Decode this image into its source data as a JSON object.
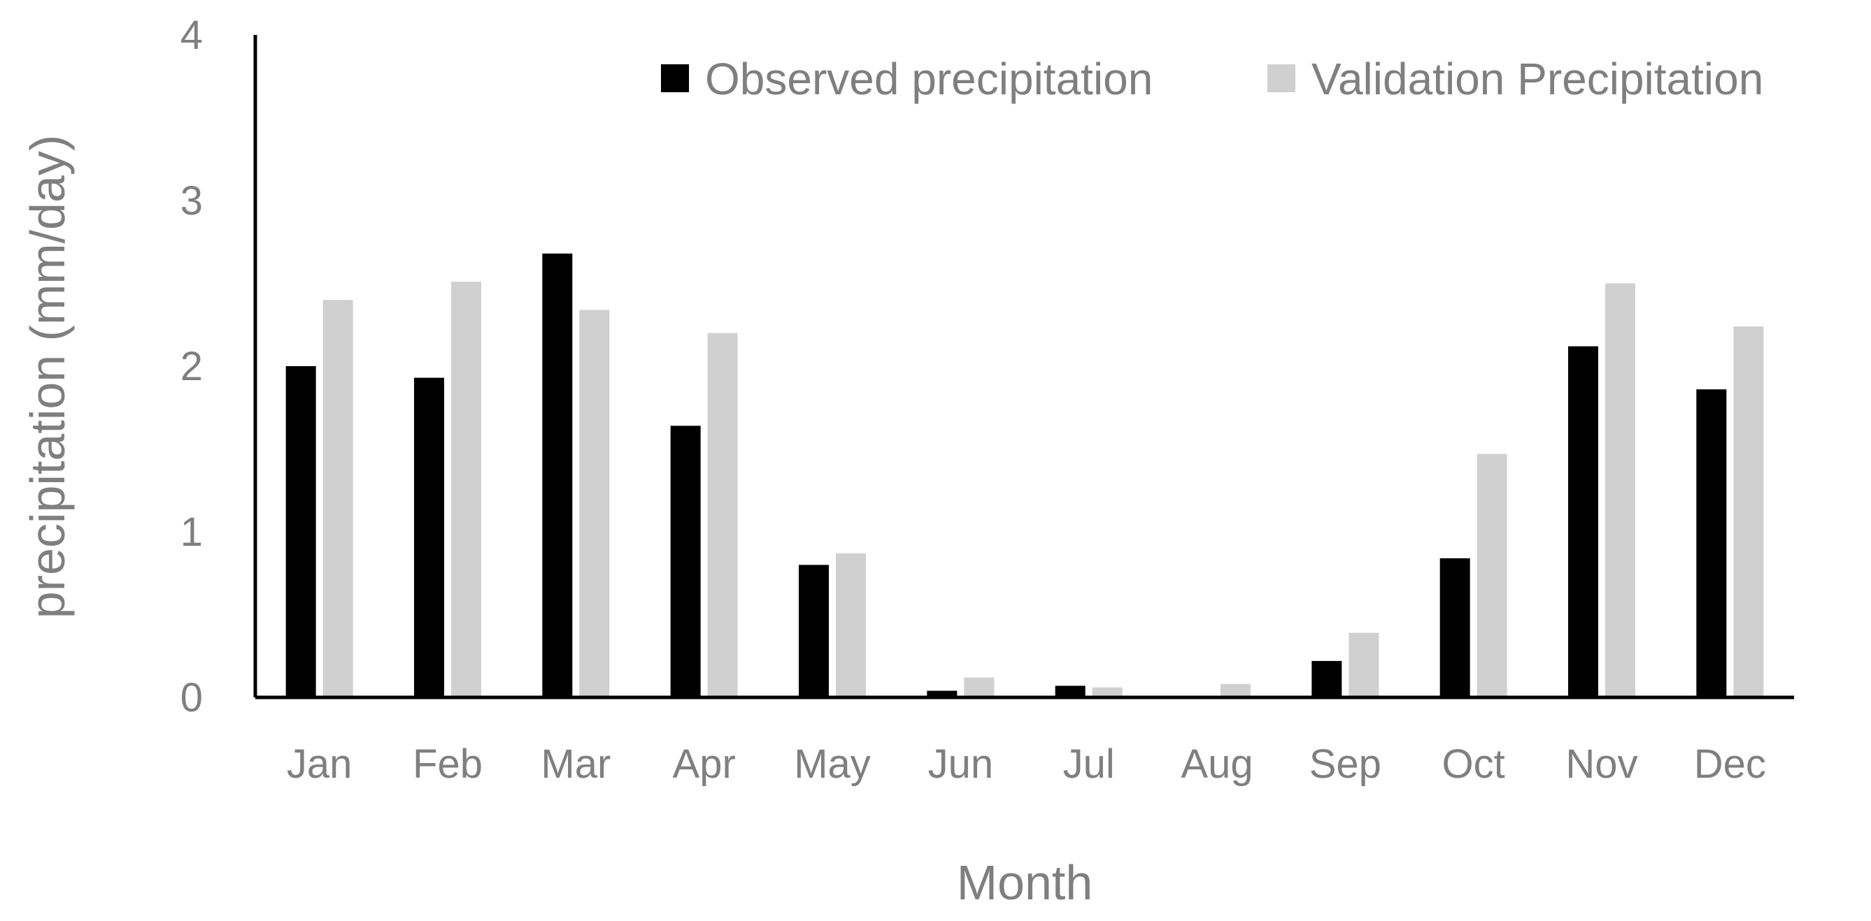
{
  "chart_data": {
    "type": "bar",
    "title": "",
    "xlabel": "Month",
    "ylabel": "precipitation (mm/day)",
    "ylim": [
      0,
      4
    ],
    "yticks": [
      "0",
      "1",
      "2",
      "3",
      "4"
    ],
    "categories": [
      "Jan",
      "Feb",
      "Mar",
      "Apr",
      "May",
      "Jun",
      "Jul",
      "Aug",
      "Sep",
      "Oct",
      "Nov",
      "Dec"
    ],
    "series": [
      {
        "name": "Observed precipitation",
        "color": "#000000",
        "values": [
          2.0,
          1.93,
          2.68,
          1.64,
          0.8,
          0.04,
          0.07,
          0.0,
          0.22,
          0.84,
          2.12,
          1.86
        ]
      },
      {
        "name": "Validation Precipitation",
        "color": "#d0d0d0",
        "values": [
          2.4,
          2.51,
          2.34,
          2.2,
          0.87,
          0.12,
          0.06,
          0.08,
          0.39,
          1.47,
          2.5,
          2.24
        ]
      }
    ],
    "grid": false,
    "legend_position": "top-right"
  }
}
